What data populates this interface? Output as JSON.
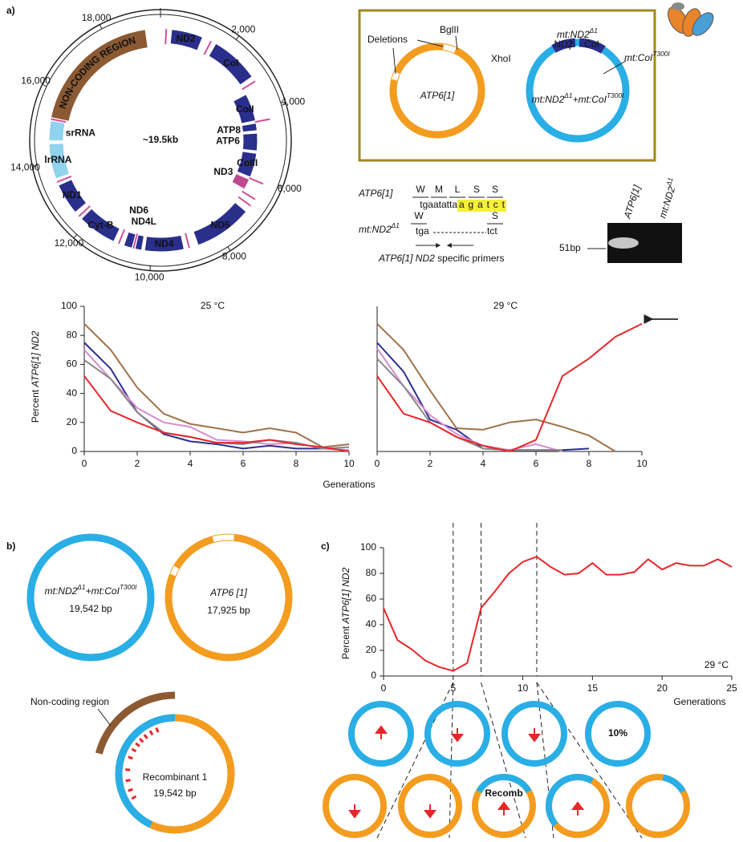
{
  "chart_data": [
    {
      "type": "line",
      "title": "25 °C",
      "x": [
        0,
        1,
        2,
        3,
        4,
        5,
        6,
        7,
        8,
        9,
        10
      ],
      "xlim": [
        0,
        10
      ],
      "xticks": [
        0,
        2,
        4,
        6,
        8,
        10
      ],
      "ylim": [
        0,
        100
      ],
      "yticks": [
        0,
        20,
        40,
        60,
        80,
        100
      ],
      "y_label": {
        "prefix": "Percent ",
        "italic": "ATP6[1] ND2"
      },
      "x_label": "Generations",
      "series": [
        {
          "color": "#a0724a",
          "values": [
            88,
            70,
            44,
            26,
            19,
            16,
            13,
            16,
            13,
            3,
            5
          ]
        },
        {
          "color": "#2b2f8f",
          "values": [
            75,
            57,
            27,
            12,
            7,
            5,
            2,
            4,
            2,
            2,
            1
          ]
        },
        {
          "color": "#d98bd0",
          "values": [
            70,
            50,
            30,
            20,
            17,
            8,
            7,
            5,
            6,
            2,
            1
          ]
        },
        {
          "color": "#8a8a8a",
          "values": [
            63,
            50,
            27,
            13,
            10,
            6,
            5,
            8,
            6,
            2,
            3
          ]
        },
        {
          "color": "#e8262a",
          "values": [
            52,
            28,
            20,
            13,
            10,
            6,
            6,
            8,
            5,
            3,
            0
          ]
        }
      ]
    },
    {
      "type": "line",
      "title": "29 °C",
      "x": [
        0,
        1,
        2,
        3,
        4,
        5,
        6,
        7,
        8,
        9,
        10
      ],
      "xlim": [
        0,
        10
      ],
      "xticks": [
        0,
        2,
        4,
        6,
        8,
        10
      ],
      "ylim": [
        0,
        100
      ],
      "series": [
        {
          "color": "#a0724a",
          "values": [
            88,
            70,
            42,
            16,
            15,
            20,
            22,
            17,
            11,
            0,
            null
          ]
        },
        {
          "color": "#2b2f8f",
          "values": [
            75,
            55,
            22,
            15,
            2,
            1,
            1,
            1,
            2,
            null,
            null
          ]
        },
        {
          "color": "#d98bd0",
          "values": [
            71,
            45,
            25,
            12,
            4,
            1,
            5,
            0,
            null,
            null,
            null
          ]
        },
        {
          "color": "#8a8a8a",
          "values": [
            64,
            45,
            20,
            10,
            2,
            1,
            1,
            1,
            null,
            null,
            null
          ]
        },
        {
          "color": "#e8262a",
          "values": [
            52,
            26,
            20,
            10,
            4,
            0,
            8,
            52,
            64,
            79,
            88
          ]
        }
      ]
    },
    {
      "type": "line",
      "annotation": "29 °C",
      "x": [
        0,
        1,
        2,
        3,
        4,
        5,
        6,
        7,
        8,
        9,
        10,
        11,
        12,
        13,
        14,
        15,
        16,
        17,
        18,
        19,
        20,
        21,
        22,
        23,
        24,
        25
      ],
      "xlim": [
        0,
        25
      ],
      "xticks": [
        0,
        5,
        10,
        15,
        20,
        25
      ],
      "ylim": [
        0,
        100
      ],
      "yticks": [
        0,
        20,
        40,
        60,
        80,
        100
      ],
      "y_label": {
        "prefix": "Percent ",
        "italic": "ATP6[1] ND2"
      },
      "x_label": "Generations",
      "markers": [
        5,
        7,
        11
      ],
      "series": [
        {
          "color": "#e8262a",
          "values": [
            53,
            28,
            21,
            12,
            7,
            4,
            10,
            53,
            66,
            80,
            89,
            93,
            85,
            79,
            80,
            88,
            79,
            79,
            81,
            91,
            83,
            88,
            86,
            86,
            91,
            85
          ]
        }
      ]
    }
  ],
  "diagram": {
    "panel_labels": [
      "a)",
      "b)",
      "c)"
    ],
    "genome_map": {
      "size": "~19.5kb",
      "coordinates": [
        "2,000",
        "4,000",
        "6,000",
        "8,000",
        "10,000",
        "12,000",
        "14,000",
        "16,000",
        "18,000"
      ],
      "genes": [
        "NON-CODING REGION",
        "ND2",
        "CoI",
        "CoII",
        "ATP8",
        "ATP6",
        "CoIII",
        "ND3",
        "ND5",
        "ND4",
        "ND4L",
        "ND6",
        "Cyt-B",
        "ND1",
        "lrRNA",
        "srRNA"
      ]
    },
    "plasmids": {
      "deletions": "Deletions",
      "bglii": "BglII",
      "xhoi": "XhoI",
      "atp6": "ATP6[1]",
      "nd2": {
        "text": "mt:ND2",
        "sup": "Δ1"
      },
      "coi": {
        "text": "mt:CoI",
        "sup": "T300I"
      },
      "double": [
        {
          "text": "mt:ND2",
          "sup": "Δ1"
        },
        {
          "text": "+mt:CoI",
          "sup": "T300I"
        }
      ],
      "nd2_short": "ND2",
      "coi_short": "CoI"
    },
    "sequence": {
      "atp6": "ATP6[1]",
      "letters": [
        "W",
        "M",
        "L",
        "S",
        "S"
      ],
      "seq": "tgaatatta",
      "seq_highlight": "agatct",
      "mt": {
        "text": "mt:ND2",
        "sup": "Δ1"
      },
      "mt_letters": [
        "W",
        "S"
      ],
      "mt_seq_start": "tga",
      "mt_seq_end": "tct",
      "primers_italic": "ATP6[1] ND2",
      "primers_text": " specific primers"
    },
    "gel": {
      "lane1": "ATP6[1]",
      "lane2": {
        "text": "mt:ND2",
        "sup": "Δ1"
      },
      "size": "51bp"
    },
    "panel_b": {
      "double": [
        {
          "text": "mt:ND2",
          "sup": "Δ1"
        },
        {
          "text": "+mt:CoI",
          "sup": "T300I"
        }
      ],
      "double_bp": "19,542 bp",
      "atp6": "ATP6 [1]",
      "atp6_bp": "17,925 bp",
      "noncoding": "Non-coding region",
      "recomb": "Recombinant 1",
      "recomb_bp": "19,542 bp"
    },
    "panel_c": {
      "pct": "10%",
      "recomb": "Recomb"
    }
  }
}
